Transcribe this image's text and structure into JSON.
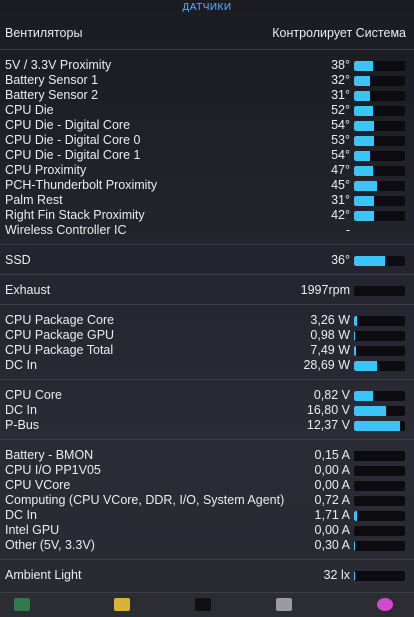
{
  "title": "ДАТЧИКИ",
  "fans": {
    "label": "Вентиляторы",
    "status": "Контролирует Система"
  },
  "groups": [
    {
      "rows": [
        {
          "label": "5V / 3.3V Proximity",
          "value": "38°",
          "level": 0.38
        },
        {
          "label": "Battery Sensor 1",
          "value": "32°",
          "level": 0.32
        },
        {
          "label": "Battery Sensor 2",
          "value": "31°",
          "level": 0.31
        },
        {
          "label": "CPU Die",
          "value": "52°",
          "level": 0.38
        },
        {
          "label": "CPU Die - Digital Core",
          "value": "54°",
          "level": 0.4
        },
        {
          "label": "CPU Die - Digital Core 0",
          "value": "53°",
          "level": 0.39
        },
        {
          "label": "CPU Die - Digital Core 1",
          "value": "54°",
          "level": 0.32
        },
        {
          "label": "CPU Proximity",
          "value": "47°",
          "level": 0.38
        },
        {
          "label": "PCH-Thunderbolt Proximity",
          "value": "45°",
          "level": 0.45
        },
        {
          "label": "Palm Rest",
          "value": "31°",
          "level": 0.4
        },
        {
          "label": "Right Fin Stack Proximity",
          "value": "42°",
          "level": 0.4
        },
        {
          "label": "Wireless Controller IC",
          "value": "-",
          "level": null
        }
      ]
    },
    {
      "rows": [
        {
          "label": "SSD",
          "value": "36°",
          "level": 0.6
        }
      ]
    },
    {
      "rows": [
        {
          "label": "Exhaust",
          "value": "1997rpm",
          "level": 0.0
        }
      ]
    },
    {
      "rows": [
        {
          "label": "CPU Package Core",
          "value": "3,26 W",
          "level": 0.06
        },
        {
          "label": "CPU Package GPU",
          "value": "0,98 W",
          "level": 0.02
        },
        {
          "label": "CPU Package Total",
          "value": "7,49 W",
          "level": 0.04
        },
        {
          "label": "DC In",
          "value": "28,69 W",
          "level": 0.45
        }
      ]
    },
    {
      "rows": [
        {
          "label": "CPU Core",
          "value": "0,82 V",
          "level": 0.38
        },
        {
          "label": "DC In",
          "value": "16,80 V",
          "level": 0.62
        },
        {
          "label": "P-Bus",
          "value": "12,37 V",
          "level": 0.9
        }
      ]
    },
    {
      "rows": [
        {
          "label": "Battery - BMON",
          "value": "0,15 A",
          "level": 0.0
        },
        {
          "label": "CPU I/O PP1V05",
          "value": "0,00 A",
          "level": 0.0
        },
        {
          "label": "CPU VCore",
          "value": "0,00 A",
          "level": 0.0
        },
        {
          "label": "Computing (CPU VCore, DDR, I/O, System Agent)",
          "value": "0,72 A",
          "level": 0.0
        },
        {
          "label": "DC In",
          "value": "1,71 A",
          "level": 0.06
        },
        {
          "label": "Intel GPU",
          "value": "0,00 A",
          "level": 0.0
        },
        {
          "label": "Other (5V, 3.3V)",
          "value": "0,30 A",
          "level": 0.02
        }
      ]
    },
    {
      "rows": [
        {
          "label": "Ambient Light",
          "value": "32 lx",
          "level": 0.02
        }
      ]
    }
  ],
  "toolbar": {
    "items": [
      {
        "name": "activity-monitor-icon",
        "color": "#2f7a4a"
      },
      {
        "name": "console-warning-icon",
        "color": "#d8b03a"
      },
      {
        "name": "terminal-icon",
        "color": "#111111"
      },
      {
        "name": "eject-icon",
        "color": "#9a9aa0"
      },
      {
        "name": "color-wheel-icon",
        "color": "#d14bd0"
      }
    ]
  }
}
